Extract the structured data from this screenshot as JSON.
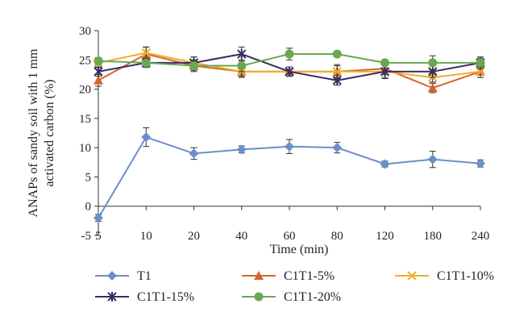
{
  "chart_data": {
    "type": "line",
    "xlabel": "Time (min)",
    "ylabel_lines": [
      "ANAPs of sandy soil with 1 mm",
      "activated carbon (%)"
    ],
    "categories": [
      "5",
      "10",
      "20",
      "40",
      "60",
      "80",
      "120",
      "180",
      "240"
    ],
    "ylim": [
      -5,
      30
    ],
    "yticks": [
      -5,
      0,
      5,
      10,
      15,
      20,
      25,
      30
    ],
    "legend_position": "bottom",
    "series": [
      {
        "name": "T1",
        "color": "#6b8fc9",
        "marker": "diamond",
        "values": [
          -2.0,
          11.8,
          9.0,
          9.7,
          10.2,
          10.0,
          7.2,
          8.0,
          7.3
        ],
        "errors": [
          0.6,
          1.6,
          1.0,
          0.6,
          1.2,
          0.9,
          0.5,
          1.4,
          0.6
        ]
      },
      {
        "name": "C1T1-5%",
        "color": "#d4662c",
        "marker": "triangle",
        "values": [
          21.5,
          26.0,
          24.0,
          23.0,
          23.0,
          23.0,
          23.5,
          20.2,
          23.0
        ],
        "errors": [
          1.0,
          1.2,
          1.0,
          1.0,
          0.8,
          1.2,
          1.0,
          0.8,
          1.0
        ]
      },
      {
        "name": "C1T1-10%",
        "color": "#f0ad2b",
        "marker": "x",
        "values": [
          24.5,
          26.2,
          24.5,
          23.0,
          23.0,
          23.0,
          23.0,
          22.0,
          23.0
        ],
        "errors": [
          0.8,
          1.0,
          1.0,
          0.8,
          0.8,
          1.0,
          1.0,
          0.8,
          1.0
        ]
      },
      {
        "name": "C1T1-15%",
        "color": "#3b2a63",
        "marker": "star",
        "values": [
          23.0,
          24.5,
          24.5,
          26.0,
          23.0,
          21.5,
          23.0,
          23.0,
          24.5
        ],
        "errors": [
          0.8,
          0.8,
          1.0,
          1.2,
          0.8,
          0.8,
          1.2,
          1.0,
          1.0
        ]
      },
      {
        "name": "C1T1-20%",
        "color": "#6aa84f",
        "marker": "circle",
        "values": [
          24.8,
          24.5,
          24.0,
          24.0,
          26.0,
          26.0,
          24.5,
          24.5,
          24.5
        ],
        "errors": [
          0.6,
          0.6,
          0.8,
          1.0,
          1.0,
          0.5,
          0.5,
          1.2,
          0.8
        ]
      }
    ]
  }
}
